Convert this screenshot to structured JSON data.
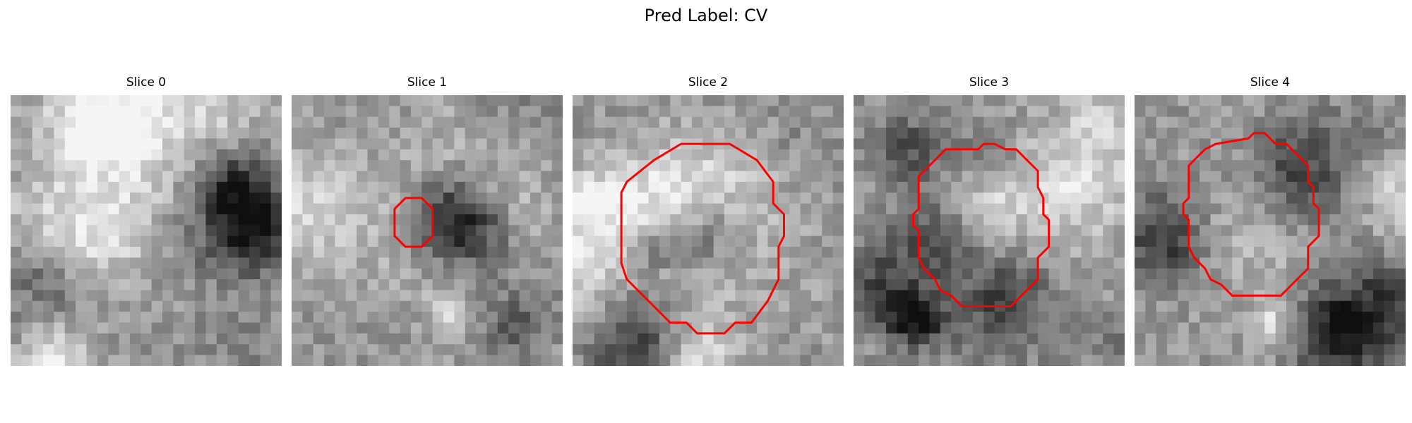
{
  "figure": {
    "title": "Pred Label: CV"
  },
  "panels": [
    {
      "title": "Slice 0",
      "contour_color": "#ff0000",
      "contour": []
    },
    {
      "title": "Slice 1",
      "contour_color": "#ff0000",
      "contour": [
        [
          10.5,
          9.5
        ],
        [
          12,
          9.5
        ],
        [
          13,
          10.5
        ],
        [
          13,
          13
        ],
        [
          12,
          14
        ],
        [
          10.5,
          14
        ],
        [
          9.5,
          13
        ],
        [
          9.5,
          10.5
        ]
      ]
    },
    {
      "title": "Slice 2",
      "contour_color": "#ff0000",
      "contour": [
        [
          10,
          4.5
        ],
        [
          14.5,
          4.5
        ],
        [
          17,
          6
        ],
        [
          18.5,
          8
        ],
        [
          18.5,
          10
        ],
        [
          19.5,
          11
        ],
        [
          19.5,
          13
        ],
        [
          19,
          14
        ],
        [
          19,
          17
        ],
        [
          18,
          19
        ],
        [
          16.5,
          21
        ],
        [
          15,
          21
        ],
        [
          14,
          22
        ],
        [
          11.5,
          22
        ],
        [
          10.5,
          21
        ],
        [
          9,
          21
        ],
        [
          7.5,
          19.5
        ],
        [
          6,
          18
        ],
        [
          5,
          17
        ],
        [
          4.5,
          15.5
        ],
        [
          4.5,
          9
        ],
        [
          5,
          8
        ],
        [
          7.5,
          6
        ]
      ]
    },
    {
      "title": "Slice 3",
      "contour_color": "#ff0000",
      "contour": [
        [
          11.5,
          5
        ],
        [
          12,
          4.5
        ],
        [
          13,
          4.5
        ],
        [
          14,
          5
        ],
        [
          15,
          5
        ],
        [
          16,
          6
        ],
        [
          17,
          7
        ],
        [
          17,
          8.5
        ],
        [
          17.5,
          9.5
        ],
        [
          17.5,
          11
        ],
        [
          18,
          11.5
        ],
        [
          18,
          14
        ],
        [
          17,
          15
        ],
        [
          17,
          17
        ],
        [
          16,
          18
        ],
        [
          15,
          19
        ],
        [
          14.5,
          19.5
        ],
        [
          10,
          19.5
        ],
        [
          9,
          18.5
        ],
        [
          8,
          18
        ],
        [
          7.5,
          17
        ],
        [
          6.5,
          16
        ],
        [
          6,
          15
        ],
        [
          6,
          12.5
        ],
        [
          5.5,
          12
        ],
        [
          5.5,
          11
        ],
        [
          6,
          10.5
        ],
        [
          6,
          7.5
        ],
        [
          7.5,
          6
        ],
        [
          8.5,
          5
        ]
      ]
    },
    {
      "title": "Slice 4",
      "contour_color": "#ff0000",
      "contour": [
        [
          10.5,
          4
        ],
        [
          11,
          3.5
        ],
        [
          12,
          3.5
        ],
        [
          13,
          4.5
        ],
        [
          14,
          4.5
        ],
        [
          15,
          5.5
        ],
        [
          16,
          6.5
        ],
        [
          16,
          8
        ],
        [
          16.5,
          8.5
        ],
        [
          16.5,
          10
        ],
        [
          17,
          10.5
        ],
        [
          17,
          13
        ],
        [
          16,
          14
        ],
        [
          16,
          16
        ],
        [
          15,
          17
        ],
        [
          14,
          18
        ],
        [
          13.5,
          18.5
        ],
        [
          9,
          18.5
        ],
        [
          8,
          17.5
        ],
        [
          7,
          17
        ],
        [
          6.5,
          16
        ],
        [
          5.5,
          15
        ],
        [
          5,
          14
        ],
        [
          5,
          11.5
        ],
        [
          4.5,
          11
        ],
        [
          4.5,
          10
        ],
        [
          5,
          9.5
        ],
        [
          5,
          6.5
        ],
        [
          6.5,
          5
        ],
        [
          7.5,
          4.5
        ]
      ]
    }
  ]
}
